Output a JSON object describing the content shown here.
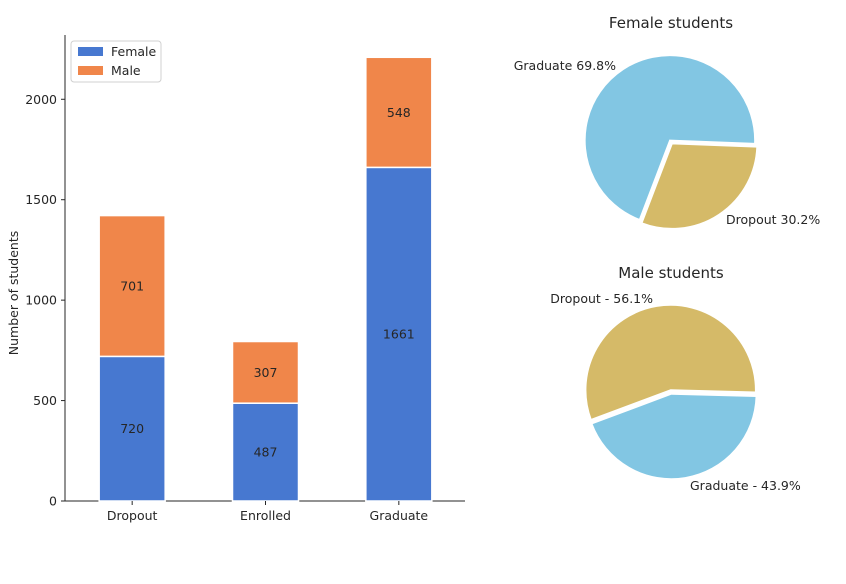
{
  "chart_data": [
    {
      "type": "bar",
      "stacked": true,
      "categories": [
        "Dropout",
        "Enrolled",
        "Graduate"
      ],
      "series": [
        {
          "name": "Female",
          "values": [
            720,
            487,
            1661
          ],
          "color": "#4778d0"
        },
        {
          "name": "Male",
          "values": [
            701,
            307,
            548
          ],
          "color": "#f0864a"
        }
      ],
      "ylabel": "Number of students",
      "xlabel": "",
      "ylim": [
        0,
        2320
      ],
      "yticks": [
        0,
        500,
        1000,
        1500,
        2000
      ],
      "legend": "top-left",
      "grid": false
    },
    {
      "type": "pie",
      "title": "Female students",
      "slices": [
        {
          "label": "Graduate 69.8%",
          "value": 69.8,
          "color": "#82c6e3",
          "exploded": true
        },
        {
          "label": "Dropout 30.2%",
          "value": 30.2,
          "color": "#d5ba68",
          "exploded": true
        }
      ]
    },
    {
      "type": "pie",
      "title": "Male students",
      "slices": [
        {
          "label": "Dropout - 56.1%",
          "value": 56.1,
          "color": "#d5ba68",
          "exploded": true
        },
        {
          "label": "Graduate - 43.9%",
          "value": 43.9,
          "color": "#82c6e3",
          "exploded": true
        }
      ]
    }
  ]
}
